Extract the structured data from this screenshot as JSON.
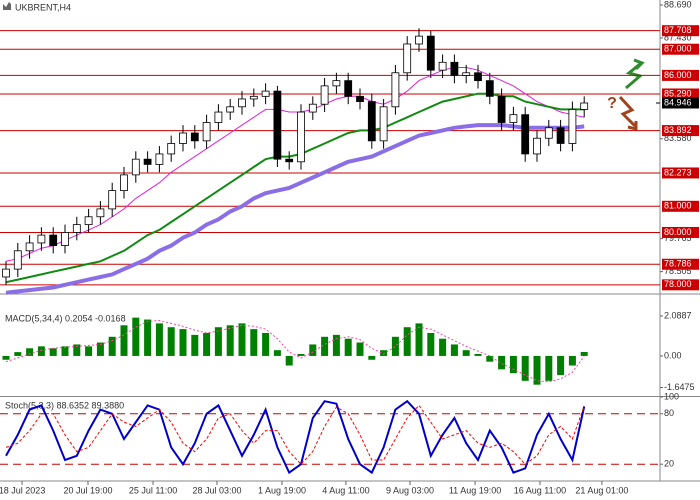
{
  "chart_data": [
    {
      "type": "candlestick",
      "title": "UKBRENT,H4",
      "open": [
        78.3,
        78.6,
        79.3,
        79.6,
        79.9,
        79.5,
        80.0,
        80.3,
        80.6,
        80.9,
        81.6,
        82.2,
        82.8,
        82.6,
        83.0,
        83.4,
        83.8,
        83.5,
        84.2,
        84.6,
        84.8,
        85.1,
        85.2,
        85.4,
        82.8,
        82.7,
        84.6,
        84.9,
        85.6,
        85.8,
        85.2,
        85.0,
        83.5,
        84.8,
        86.1,
        87.2,
        87.5,
        86.2,
        86.5,
        86.0,
        86.1,
        85.8,
        85.2,
        84.2,
        84.5,
        83.0,
        83.6,
        84.0,
        83.4,
        84.7
      ],
      "high": [
        78.9,
        79.6,
        79.9,
        80.2,
        80.2,
        80.3,
        80.6,
        80.9,
        81.2,
        81.9,
        82.5,
        83.1,
        83.1,
        83.3,
        83.7,
        84.1,
        84.1,
        84.5,
        84.9,
        85.1,
        85.4,
        85.5,
        85.7,
        85.6,
        83.1,
        84.9,
        85.2,
        85.9,
        86.1,
        86.1,
        85.5,
        85.3,
        85.1,
        86.4,
        87.5,
        87.8,
        87.7,
        86.8,
        86.8,
        86.4,
        86.4,
        86.1,
        85.5,
        84.8,
        84.8,
        83.9,
        84.3,
        84.3,
        85.0,
        85.2
      ],
      "low": [
        78.0,
        78.3,
        79.0,
        79.3,
        79.2,
        79.2,
        79.7,
        80.0,
        80.3,
        80.6,
        81.3,
        81.9,
        82.3,
        82.3,
        82.7,
        83.1,
        83.2,
        83.2,
        83.9,
        84.3,
        84.5,
        84.8,
        84.9,
        82.5,
        82.4,
        82.4,
        84.3,
        84.6,
        85.3,
        84.9,
        84.7,
        83.2,
        83.2,
        84.5,
        85.8,
        86.9,
        85.9,
        85.9,
        85.7,
        85.7,
        85.5,
        84.9,
        83.9,
        83.9,
        82.7,
        82.7,
        83.3,
        83.1,
        83.1,
        84.4
      ],
      "close": [
        78.6,
        79.3,
        79.6,
        79.9,
        79.5,
        80.0,
        80.3,
        80.6,
        80.9,
        81.6,
        82.2,
        82.8,
        82.6,
        83.0,
        83.4,
        83.8,
        83.5,
        84.2,
        84.6,
        84.8,
        85.1,
        85.2,
        85.4,
        82.8,
        82.7,
        84.6,
        84.9,
        85.6,
        85.8,
        85.2,
        85.0,
        83.5,
        84.8,
        86.1,
        87.2,
        87.5,
        86.2,
        86.5,
        86.0,
        86.1,
        85.8,
        85.2,
        84.2,
        84.5,
        83.0,
        83.6,
        84.0,
        83.4,
        84.7,
        84.946
      ],
      "series": [
        {
          "color": "#e020e0",
          "width": 1,
          "values": [
            78.9,
            79.0,
            79.2,
            79.4,
            79.5,
            79.7,
            79.9,
            80.1,
            80.3,
            80.6,
            80.9,
            81.3,
            81.6,
            81.9,
            82.3,
            82.6,
            82.9,
            83.2,
            83.5,
            83.8,
            84.1,
            84.4,
            84.7,
            84.7,
            84.6,
            84.6,
            84.7,
            84.9,
            85.1,
            85.2,
            85.2,
            85.0,
            84.9,
            85.1,
            85.4,
            85.8,
            86.0,
            86.2,
            86.3,
            86.3,
            86.2,
            86.0,
            85.8,
            85.6,
            85.3,
            85.0,
            84.8,
            84.6,
            84.5,
            84.4
          ]
        },
        {
          "color": "#118a11",
          "width": 2,
          "values": [
            78.1,
            78.2,
            78.3,
            78.4,
            78.5,
            78.6,
            78.7,
            78.8,
            78.9,
            79.1,
            79.3,
            79.6,
            79.9,
            80.1,
            80.4,
            80.7,
            81.0,
            81.3,
            81.6,
            81.9,
            82.2,
            82.5,
            82.8,
            82.9,
            82.9,
            83.0,
            83.2,
            83.4,
            83.6,
            83.8,
            83.9,
            83.9,
            84.0,
            84.2,
            84.4,
            84.6,
            84.8,
            85.0,
            85.1,
            85.2,
            85.3,
            85.3,
            85.2,
            85.2,
            85.0,
            84.9,
            84.8,
            84.7,
            84.7,
            84.7
          ]
        },
        {
          "color": "#8a6ee6",
          "width": 4,
          "values": [
            77.7,
            77.75,
            77.8,
            77.85,
            77.9,
            78.0,
            78.1,
            78.2,
            78.3,
            78.4,
            78.6,
            78.8,
            79.0,
            79.3,
            79.5,
            79.8,
            80.0,
            80.3,
            80.5,
            80.8,
            81.0,
            81.3,
            81.5,
            81.6,
            81.7,
            81.9,
            82.1,
            82.3,
            82.5,
            82.7,
            82.8,
            82.9,
            83.1,
            83.3,
            83.5,
            83.7,
            83.8,
            83.9,
            84.0,
            84.05,
            84.1,
            84.1,
            84.1,
            84.05,
            84.0,
            84.0,
            84.0,
            84.0,
            84.0,
            84.05
          ]
        }
      ],
      "ylim": [
        77.65,
        88.88
      ],
      "yticks": [
        {
          "value": 88.69,
          "label": "88.690"
        },
        {
          "value": 87.43,
          "label": "87.430"
        },
        {
          "value": 83.58,
          "label": "83.580"
        },
        {
          "value": 79.765,
          "label": "79.765"
        },
        {
          "value": 78.505,
          "label": "78.505"
        }
      ],
      "levels": [
        {
          "value": 87.708,
          "label": "87.708"
        },
        {
          "value": 87.0,
          "label": "87.000"
        },
        {
          "value": 86.0,
          "label": "86.000"
        },
        {
          "value": 85.29,
          "label": "85.290"
        },
        {
          "value": 83.892,
          "label": "83.892"
        },
        {
          "value": 82.273,
          "label": "82.273"
        },
        {
          "value": 81.0,
          "label": "81.000"
        },
        {
          "value": 80.0,
          "label": "80.000"
        },
        {
          "value": 78.786,
          "label": "78.786"
        },
        {
          "value": 78.0,
          "label": "78.000"
        }
      ],
      "level_color": "#cc0000",
      "last": {
        "value": 84.946,
        "label": "84.946"
      },
      "annotation": "?",
      "xticks": [
        {
          "value": 1.36,
          "label": "18 Jul 2023"
        },
        {
          "value": 6.95,
          "label": "20 Jul 19:00"
        },
        {
          "value": 12.46,
          "label": "25 Jul 11:00"
        },
        {
          "value": 17.88,
          "label": "28 Jul 03:00"
        },
        {
          "value": 23.39,
          "label": "1 Aug 19:00"
        },
        {
          "value": 28.81,
          "label": "4 Aug 11:00"
        },
        {
          "value": 34.24,
          "label": "9 Aug 03:00"
        },
        {
          "value": 39.75,
          "label": "11 Aug 19:00"
        },
        {
          "value": 45.25,
          "label": "16 Aug 11:00"
        },
        {
          "value": 50.5,
          "label": "21 Aug 01:00"
        }
      ]
    },
    {
      "type": "bar",
      "title": "MACD(5,34,4) 0.2054 -0.0168",
      "color": "#008000",
      "values": [
        -0.2,
        0.2,
        0.4,
        0.5,
        0.4,
        0.5,
        0.6,
        0.5,
        0.7,
        1.0,
        1.6,
        2.0,
        1.9,
        1.7,
        1.5,
        1.4,
        1.1,
        1.2,
        1.5,
        1.6,
        1.7,
        1.4,
        1.2,
        0.3,
        -0.5,
        0.1,
        0.6,
        1.0,
        1.1,
        0.9,
        0.7,
        -0.2,
        0.3,
        1.0,
        1.5,
        1.7,
        1.2,
        0.9,
        0.6,
        0.3,
        0.1,
        -0.3,
        -0.7,
        -0.9,
        -1.3,
        -1.5,
        -1.3,
        -1.0,
        -0.5,
        0.2054
      ],
      "signal": {
        "color": "#ff3fa0",
        "values": [
          -0.3,
          -0.1,
          0.1,
          0.3,
          0.4,
          0.45,
          0.5,
          0.55,
          0.6,
          0.8,
          1.1,
          1.5,
          1.8,
          1.85,
          1.7,
          1.55,
          1.35,
          1.2,
          1.3,
          1.45,
          1.6,
          1.55,
          1.4,
          0.9,
          0.2,
          -0.1,
          0.2,
          0.6,
          0.9,
          1.0,
          0.85,
          0.4,
          0.1,
          0.5,
          1.1,
          1.5,
          1.4,
          1.1,
          0.8,
          0.5,
          0.25,
          0.0,
          -0.4,
          -0.7,
          -1.0,
          -1.3,
          -1.35,
          -1.2,
          -0.85,
          -0.0168
        ]
      },
      "ylim": [
        -2.04,
        3.13
      ],
      "yticks": [
        2.0887,
        {
          "value": 0,
          "label": "0.00"
        },
        -1.6475
      ]
    },
    {
      "type": "line",
      "title": "Stoch(5,3,3) 88.6352 89.3880",
      "series": [
        {
          "color": "#0000cc",
          "width": 2,
          "values": [
            30,
            55,
            85,
            90,
            60,
            25,
            30,
            60,
            85,
            80,
            50,
            70,
            90,
            85,
            40,
            20,
            45,
            80,
            90,
            60,
            30,
            55,
            85,
            40,
            10,
            20,
            75,
            95,
            92,
            50,
            20,
            10,
            40,
            85,
            95,
            80,
            30,
            55,
            75,
            45,
            25,
            60,
            40,
            10,
            15,
            55,
            80,
            50,
            25,
            88.6352
          ]
        },
        {
          "color": "#ff0000",
          "width": 1,
          "dash": true,
          "values": [
            40,
            45,
            60,
            80,
            80,
            55,
            35,
            40,
            60,
            80,
            70,
            65,
            75,
            85,
            70,
            45,
            35,
            50,
            75,
            80,
            60,
            45,
            60,
            60,
            35,
            20,
            35,
            65,
            88,
            80,
            55,
            25,
            25,
            50,
            75,
            90,
            70,
            50,
            55,
            60,
            45,
            40,
            45,
            35,
            20,
            30,
            55,
            65,
            50,
            89.388
          ]
        }
      ],
      "ylim": [
        0,
        100
      ],
      "yticks": [
        100,
        80,
        20
      ],
      "levels": [
        80,
        20
      ],
      "level_color": "#cc0000"
    }
  ]
}
